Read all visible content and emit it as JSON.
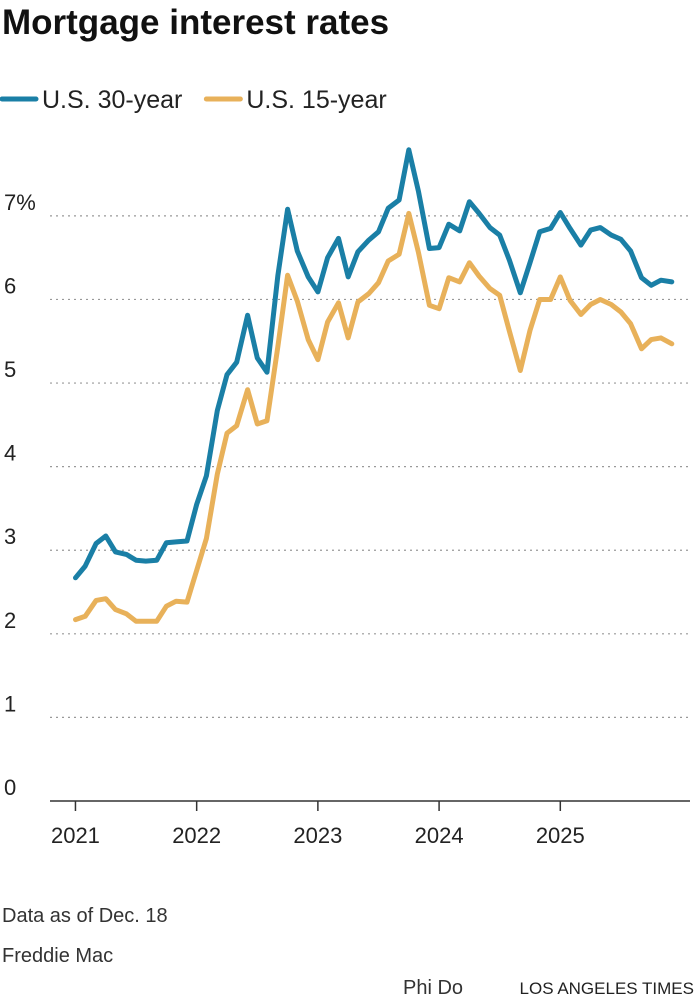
{
  "chart_data": {
    "type": "line",
    "title": "Mortgage interest rates",
    "note": "Data as of Dec. 18",
    "source": "Freddie Mac",
    "byline": "Phi Do",
    "publisher": "LOS ANGELES TIMES",
    "x": [
      2021.0,
      2021.08,
      2021.17,
      2021.25,
      2021.33,
      2021.42,
      2021.5,
      2021.58,
      2021.67,
      2021.75,
      2021.83,
      2021.92,
      2022.0,
      2022.08,
      2022.17,
      2022.25,
      2022.33,
      2022.42,
      2022.5,
      2022.58,
      2022.67,
      2022.75,
      2022.83,
      2022.92,
      2023.0,
      2023.08,
      2023.17,
      2023.25,
      2023.33,
      2023.42,
      2023.5,
      2023.58,
      2023.67,
      2023.75,
      2023.83,
      2023.92,
      2024.0,
      2024.08,
      2024.17,
      2024.25,
      2024.33,
      2024.42,
      2024.5,
      2024.58,
      2024.67,
      2024.75,
      2024.83,
      2024.92,
      2025.0,
      2025.08,
      2025.17,
      2025.25,
      2025.33,
      2025.42,
      2025.5,
      2025.58,
      2025.67,
      2025.75,
      2025.83,
      2025.92
    ],
    "series": [
      {
        "name": "U.S. 30-year",
        "color": "#1a7fa6",
        "values": [
          2.67,
          2.81,
          3.08,
          3.17,
          2.98,
          2.95,
          2.88,
          2.87,
          2.88,
          3.09,
          3.1,
          3.11,
          3.55,
          3.89,
          4.67,
          5.1,
          5.25,
          5.81,
          5.3,
          5.13,
          6.29,
          7.08,
          6.58,
          6.27,
          6.09,
          6.5,
          6.73,
          6.27,
          6.57,
          6.71,
          6.81,
          7.09,
          7.19,
          7.79,
          7.29,
          6.61,
          6.62,
          6.9,
          6.82,
          7.17,
          7.03,
          6.86,
          6.77,
          6.47,
          6.08,
          6.44,
          6.81,
          6.85,
          7.04,
          6.85,
          6.65,
          6.83,
          6.86,
          6.77,
          6.72,
          6.58,
          6.26,
          6.17,
          6.23,
          6.21
        ]
      },
      {
        "name": "U.S. 15-year",
        "color": "#e8b15a",
        "values": [
          2.17,
          2.21,
          2.4,
          2.42,
          2.29,
          2.24,
          2.15,
          2.15,
          2.15,
          2.33,
          2.39,
          2.38,
          2.76,
          3.14,
          3.91,
          4.4,
          4.49,
          4.92,
          4.51,
          4.55,
          5.44,
          6.29,
          5.98,
          5.52,
          5.28,
          5.73,
          5.96,
          5.54,
          5.97,
          6.07,
          6.2,
          6.46,
          6.54,
          7.03,
          6.56,
          5.93,
          5.89,
          6.26,
          6.21,
          6.44,
          6.28,
          6.13,
          6.05,
          5.62,
          5.15,
          5.63,
          6.0,
          6.0,
          6.27,
          5.99,
          5.82,
          5.94,
          6.0,
          5.94,
          5.85,
          5.71,
          5.41,
          5.52,
          5.54,
          5.47
        ]
      }
    ],
    "xlim": [
      2020.79,
      2026.07
    ],
    "xticks": [
      2021,
      2022,
      2023,
      2024,
      2025
    ],
    "ylim": [
      0,
      7.8
    ],
    "yticks": [
      0,
      1,
      2,
      3,
      4,
      5,
      6,
      {
        "value": 7,
        "label": "7%"
      }
    ],
    "grid": true
  }
}
